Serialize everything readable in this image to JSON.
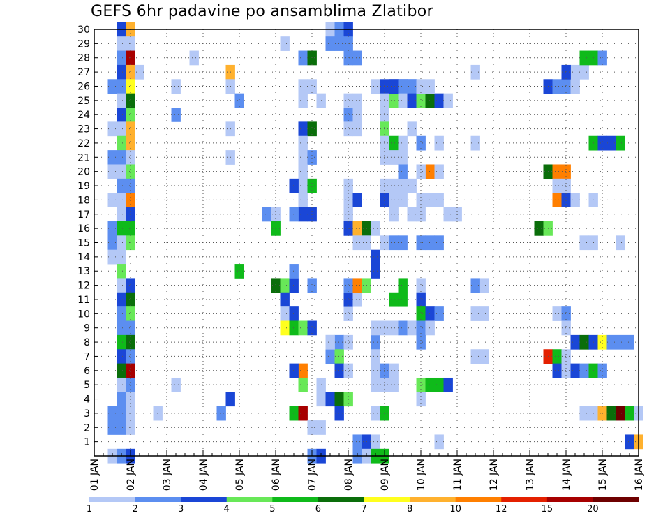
{
  "chart_data": {
    "type": "heatmap",
    "title": "GEFS 6hr padavine po ansamblima Zlatibor",
    "xlabel": "",
    "ylabel": "",
    "xlim": [
      0,
      15
    ],
    "ylim": [
      0,
      30
    ],
    "x_tick_labels": [
      "01 JAN",
      "02 JAN",
      "03 JAN",
      "04 JAN",
      "05 JAN",
      "06 JAN",
      "07 JAN",
      "08 JAN",
      "09 JAN",
      "10 JAN",
      "11 JAN",
      "12 JAN",
      "13 JAN",
      "14 JAN",
      "15 JAN",
      "16 JAN"
    ],
    "y_tick_labels": [
      "1",
      "2",
      "3",
      "4",
      "5",
      "6",
      "7",
      "8",
      "9",
      "10",
      "11",
      "12",
      "13",
      "14",
      "15",
      "16",
      "17",
      "18",
      "19",
      "20",
      "21",
      "22",
      "23",
      "24",
      "25",
      "26",
      "27",
      "28",
      "29",
      "30"
    ],
    "levels": [
      "1",
      "2",
      "3",
      "4",
      "5",
      "6",
      "7",
      "8",
      "10",
      "12",
      "15",
      "20"
    ],
    "colors": [
      "#b4c8f6",
      "#5c8ef0",
      "#1a46d6",
      "#68e858",
      "#0fba1a",
      "#0a6e0a",
      "#ffff1e",
      "#ffb12e",
      "#ff7f00",
      "#e42000",
      "#a70000",
      "#6e0000"
    ],
    "grid": true,
    "cells": [
      [
        0.75,
        30,
        2
      ],
      [
        0.75,
        29,
        0
      ],
      [
        0.75,
        28,
        1
      ],
      [
        0.75,
        27,
        2
      ],
      [
        0.75,
        26,
        1
      ],
      [
        0.75,
        25,
        0
      ],
      [
        0.75,
        24,
        2
      ],
      [
        0.75,
        23,
        0
      ],
      [
        0.75,
        22,
        3
      ],
      [
        0.75,
        21,
        1
      ],
      [
        0.75,
        20,
        0
      ],
      [
        0.75,
        19,
        1
      ],
      [
        0.75,
        18,
        0
      ],
      [
        0.75,
        17,
        0
      ],
      [
        0.75,
        16,
        4
      ],
      [
        0.75,
        15,
        0
      ],
      [
        0.75,
        14,
        0
      ],
      [
        0.75,
        13,
        3
      ],
      [
        0.75,
        12,
        0
      ],
      [
        0.75,
        11,
        2
      ],
      [
        0.75,
        10,
        1
      ],
      [
        0.75,
        9,
        1
      ],
      [
        0.75,
        8,
        4
      ],
      [
        0.75,
        7,
        2
      ],
      [
        0.75,
        6,
        5
      ],
      [
        0.75,
        5,
        0
      ],
      [
        0.75,
        4,
        1
      ],
      [
        0.75,
        3,
        1
      ],
      [
        0.75,
        2,
        1
      ],
      [
        0.75,
        0,
        1
      ],
      [
        1.0,
        30,
        7
      ],
      [
        1.0,
        29,
        0
      ],
      [
        1.0,
        28,
        10
      ],
      [
        1.0,
        27,
        7
      ],
      [
        1.0,
        26,
        6
      ],
      [
        1.0,
        25,
        5
      ],
      [
        1.0,
        24,
        3
      ],
      [
        1.0,
        23,
        7
      ],
      [
        1.0,
        22,
        7
      ],
      [
        1.0,
        21,
        0
      ],
      [
        1.0,
        20,
        3
      ],
      [
        1.0,
        19,
        1
      ],
      [
        1.0,
        18,
        8
      ],
      [
        1.0,
        17,
        2
      ],
      [
        1.0,
        16,
        4
      ],
      [
        1.0,
        15,
        3
      ],
      [
        1.0,
        12,
        2
      ],
      [
        1.0,
        11,
        5
      ],
      [
        1.0,
        10,
        3
      ],
      [
        1.0,
        9,
        1
      ],
      [
        1.0,
        8,
        5
      ],
      [
        1.0,
        7,
        1
      ],
      [
        1.0,
        6,
        10
      ],
      [
        1.0,
        5,
        1
      ],
      [
        1.0,
        4,
        0
      ],
      [
        1.0,
        3,
        0
      ],
      [
        1.0,
        2,
        0
      ],
      [
        1.0,
        0,
        2
      ],
      [
        0.5,
        26,
        1
      ],
      [
        0.5,
        23,
        0
      ],
      [
        0.5,
        21,
        1
      ],
      [
        0.5,
        20,
        0
      ],
      [
        0.5,
        18,
        0
      ],
      [
        0.5,
        16,
        1
      ],
      [
        0.5,
        15,
        1
      ],
      [
        0.5,
        14,
        0
      ],
      [
        0.5,
        3,
        1
      ],
      [
        0.5,
        2,
        1
      ],
      [
        0.5,
        0,
        0
      ],
      [
        1.25,
        27,
        0
      ],
      [
        1.75,
        3,
        0
      ],
      [
        2.25,
        5,
        0
      ],
      [
        2.25,
        24,
        1
      ],
      [
        2.25,
        26,
        0
      ],
      [
        2.75,
        28,
        0
      ],
      [
        3.5,
        3,
        1
      ],
      [
        3.75,
        4,
        2
      ],
      [
        3.75,
        27,
        7
      ],
      [
        3.75,
        26,
        0
      ],
      [
        3.75,
        23,
        0
      ],
      [
        3.75,
        21,
        0
      ],
      [
        4.0,
        25,
        1
      ],
      [
        4.0,
        13,
        4
      ],
      [
        4.75,
        17,
        1
      ],
      [
        5.0,
        17,
        0
      ],
      [
        5.0,
        16,
        4
      ],
      [
        5.0,
        12,
        5
      ],
      [
        5.25,
        12,
        3
      ],
      [
        5.25,
        11,
        2
      ],
      [
        5.25,
        10,
        0
      ],
      [
        5.25,
        9,
        6
      ],
      [
        5.5,
        12,
        2
      ],
      [
        5.5,
        10,
        2
      ],
      [
        5.5,
        9,
        4
      ],
      [
        5.25,
        29,
        0
      ],
      [
        5.75,
        28,
        1
      ],
      [
        6.0,
        28,
        5
      ],
      [
        5.75,
        26,
        0
      ],
      [
        5.75,
        25,
        0
      ],
      [
        5.75,
        23,
        2
      ],
      [
        6.0,
        23,
        5
      ],
      [
        5.75,
        22,
        0
      ],
      [
        5.75,
        21,
        0
      ],
      [
        6.0,
        21,
        1
      ],
      [
        5.75,
        20,
        0
      ],
      [
        5.75,
        19,
        0
      ],
      [
        5.5,
        19,
        2
      ],
      [
        6.0,
        19,
        4
      ],
      [
        5.75,
        18,
        0
      ],
      [
        5.75,
        17,
        2
      ],
      [
        5.5,
        17,
        1
      ],
      [
        6.0,
        17,
        2
      ],
      [
        5.5,
        13,
        1
      ],
      [
        6.0,
        12,
        1
      ],
      [
        5.75,
        9,
        3
      ],
      [
        6.0,
        9,
        2
      ],
      [
        5.75,
        6,
        8
      ],
      [
        5.5,
        6,
        2
      ],
      [
        5.75,
        5,
        3
      ],
      [
        5.5,
        3,
        4
      ],
      [
        5.75,
        3,
        10
      ],
      [
        6.0,
        2,
        0
      ],
      [
        6.25,
        2,
        0
      ],
      [
        6.0,
        0,
        1
      ],
      [
        6.25,
        0,
        2
      ],
      [
        6.25,
        5,
        0
      ],
      [
        6.25,
        4,
        0
      ],
      [
        6.5,
        4,
        2
      ],
      [
        6.75,
        4,
        5
      ],
      [
        7.0,
        4,
        3
      ],
      [
        6.75,
        3,
        2
      ],
      [
        6.5,
        8,
        0
      ],
      [
        6.75,
        8,
        1
      ],
      [
        6.5,
        7,
        1
      ],
      [
        6.75,
        7,
        3
      ],
      [
        6.5,
        8,
        0
      ],
      [
        7.0,
        8,
        0
      ],
      [
        6.75,
        6,
        2
      ],
      [
        7.0,
        6,
        0
      ],
      [
        7.0,
        10,
        0
      ],
      [
        7.0,
        11,
        2
      ],
      [
        7.25,
        11,
        0
      ],
      [
        7.0,
        12,
        1
      ],
      [
        7.25,
        12,
        8
      ],
      [
        7.5,
        12,
        3
      ],
      [
        6.25,
        25,
        0
      ],
      [
        6.5,
        30,
        0
      ],
      [
        6.75,
        30,
        1
      ],
      [
        7.0,
        30,
        2
      ],
      [
        6.5,
        29,
        1
      ],
      [
        6.75,
        29,
        1
      ],
      [
        7.0,
        29,
        1
      ],
      [
        6.0,
        26,
        0
      ],
      [
        7.0,
        28,
        1
      ],
      [
        7.25,
        28,
        1
      ],
      [
        7.0,
        25,
        0
      ],
      [
        7.25,
        25,
        0
      ],
      [
        7.0,
        24,
        1
      ],
      [
        7.25,
        24,
        0
      ],
      [
        7.0,
        23,
        0
      ],
      [
        7.25,
        23,
        0
      ],
      [
        7.0,
        19,
        0
      ],
      [
        7.0,
        18,
        0
      ],
      [
        7.25,
        18,
        2
      ],
      [
        7.0,
        17,
        0
      ],
      [
        7.0,
        16,
        2
      ],
      [
        7.25,
        16,
        7
      ],
      [
        7.5,
        16,
        5
      ],
      [
        7.25,
        15,
        0
      ],
      [
        7.5,
        15,
        0
      ],
      [
        7.25,
        1,
        1
      ],
      [
        7.5,
        1,
        2
      ],
      [
        7.75,
        1,
        0
      ],
      [
        7.25,
        0,
        1
      ],
      [
        7.5,
        0,
        0
      ],
      [
        7.75,
        16,
        0
      ],
      [
        7.75,
        14,
        2
      ],
      [
        7.75,
        13,
        2
      ],
      [
        7.75,
        5,
        0
      ],
      [
        7.75,
        8,
        1
      ],
      [
        7.75,
        7,
        0
      ],
      [
        7.75,
        3,
        0
      ],
      [
        8.0,
        3,
        4
      ],
      [
        7.75,
        26,
        0
      ],
      [
        8.0,
        26,
        2
      ],
      [
        8.25,
        26,
        2
      ],
      [
        8.5,
        26,
        2
      ],
      [
        8.75,
        26,
        1
      ],
      [
        8.0,
        25,
        0
      ],
      [
        8.25,
        25,
        3
      ],
      [
        8.0,
        24,
        0
      ],
      [
        8.0,
        23,
        3
      ],
      [
        8.0,
        22,
        0
      ],
      [
        8.25,
        22,
        4
      ],
      [
        8.0,
        21,
        0
      ],
      [
        8.25,
        21,
        0
      ],
      [
        8.0,
        19,
        0
      ],
      [
        8.25,
        19,
        0
      ],
      [
        8.5,
        19,
        0
      ],
      [
        8.75,
        19,
        0
      ],
      [
        8.0,
        18,
        2
      ],
      [
        8.25,
        18,
        0
      ],
      [
        8.5,
        18,
        0
      ],
      [
        8.25,
        17,
        0
      ],
      [
        8.75,
        17,
        0
      ],
      [
        8.0,
        15,
        0
      ],
      [
        8.25,
        15,
        1
      ],
      [
        8.5,
        15,
        1
      ],
      [
        7.75,
        9,
        0
      ],
      [
        8.0,
        9,
        0
      ],
      [
        8.25,
        9,
        0
      ],
      [
        8.5,
        9,
        1
      ],
      [
        8.75,
        9,
        0
      ],
      [
        7.75,
        6,
        0
      ],
      [
        8.0,
        6,
        1
      ],
      [
        8.25,
        6,
        0
      ],
      [
        8.0,
        5,
        0
      ],
      [
        8.25,
        5,
        0
      ],
      [
        7.75,
        0,
        4
      ],
      [
        8.0,
        0,
        4
      ],
      [
        8.25,
        26,
        2
      ],
      [
        8.5,
        26,
        1
      ],
      [
        8.75,
        26,
        1
      ],
      [
        8.5,
        25,
        0
      ],
      [
        8.75,
        25,
        2
      ],
      [
        8.75,
        23,
        0
      ],
      [
        8.5,
        22,
        0
      ],
      [
        8.5,
        21,
        0
      ],
      [
        8.5,
        20,
        1
      ],
      [
        8.5,
        11,
        4
      ],
      [
        8.5,
        12,
        4
      ],
      [
        8.25,
        11,
        4
      ],
      [
        9.0,
        25,
        3
      ],
      [
        9.25,
        25,
        5
      ],
      [
        9.5,
        25,
        2
      ],
      [
        9.75,
        25,
        0
      ],
      [
        9.0,
        26,
        0
      ],
      [
        9.25,
        26,
        0
      ],
      [
        9.0,
        22,
        1
      ],
      [
        9.5,
        22,
        0
      ],
      [
        9.0,
        18,
        0
      ],
      [
        9.25,
        18,
        0
      ],
      [
        9.5,
        18,
        0
      ],
      [
        9.0,
        17,
        0
      ],
      [
        9.5,
        15,
        1
      ],
      [
        9.25,
        15,
        1
      ],
      [
        9.0,
        15,
        1
      ],
      [
        9.0,
        12,
        0
      ],
      [
        9.0,
        11,
        2
      ],
      [
        9.0,
        10,
        4
      ],
      [
        9.25,
        10,
        2
      ],
      [
        9.5,
        10,
        1
      ],
      [
        9.0,
        9,
        1
      ],
      [
        9.25,
        9,
        0
      ],
      [
        9.0,
        8,
        1
      ],
      [
        9.0,
        5,
        3
      ],
      [
        9.25,
        5,
        4
      ],
      [
        9.5,
        5,
        4
      ],
      [
        9.75,
        5,
        2
      ],
      [
        9.0,
        4,
        0
      ],
      [
        9.5,
        1,
        0
      ],
      [
        9.25,
        20,
        8
      ],
      [
        9.5,
        20,
        0
      ],
      [
        9.0,
        20,
        0
      ],
      [
        9.75,
        17,
        0
      ],
      [
        10.0,
        17,
        0
      ],
      [
        10.75,
        12,
        0
      ],
      [
        10.5,
        12,
        1
      ],
      [
        10.5,
        10,
        0
      ],
      [
        10.75,
        10,
        0
      ],
      [
        10.5,
        7,
        0
      ],
      [
        10.75,
        7,
        0
      ],
      [
        10.5,
        22,
        0
      ],
      [
        10.5,
        27,
        0
      ],
      [
        12.5,
        26,
        2
      ],
      [
        12.75,
        26,
        1
      ],
      [
        13.0,
        26,
        1
      ],
      [
        13.25,
        26,
        0
      ],
      [
        13.25,
        27,
        0
      ],
      [
        13.5,
        27,
        0
      ],
      [
        13.0,
        27,
        2
      ],
      [
        13.5,
        28,
        4
      ],
      [
        13.75,
        28,
        4
      ],
      [
        14.0,
        28,
        1
      ],
      [
        13.75,
        22,
        4
      ],
      [
        14.0,
        22,
        2
      ],
      [
        14.25,
        22,
        2
      ],
      [
        14.5,
        22,
        4
      ],
      [
        12.5,
        20,
        5
      ],
      [
        12.75,
        20,
        8
      ],
      [
        13.0,
        20,
        8
      ],
      [
        12.75,
        19,
        0
      ],
      [
        13.0,
        19,
        0
      ],
      [
        12.75,
        18,
        8
      ],
      [
        13.0,
        18,
        2
      ],
      [
        13.25,
        18,
        0
      ],
      [
        13.75,
        18,
        0
      ],
      [
        12.25,
        16,
        5
      ],
      [
        12.5,
        16,
        3
      ],
      [
        13.5,
        15,
        0
      ],
      [
        13.75,
        15,
        0
      ],
      [
        14.5,
        15,
        0
      ],
      [
        12.75,
        10,
        0
      ],
      [
        13.0,
        10,
        1
      ],
      [
        13.0,
        9,
        0
      ],
      [
        12.5,
        7,
        9
      ],
      [
        12.75,
        7,
        4
      ],
      [
        13.0,
        7,
        0
      ],
      [
        12.75,
        6,
        2
      ],
      [
        13.0,
        6,
        0
      ],
      [
        13.25,
        6,
        2
      ],
      [
        13.5,
        6,
        1
      ],
      [
        13.75,
        6,
        4
      ],
      [
        14.0,
        6,
        1
      ],
      [
        13.25,
        8,
        2
      ],
      [
        13.5,
        8,
        5
      ],
      [
        13.75,
        8,
        2
      ],
      [
        14.0,
        8,
        6
      ],
      [
        14.25,
        8,
        1
      ],
      [
        14.5,
        8,
        1
      ],
      [
        14.75,
        8,
        1
      ],
      [
        13.5,
        3,
        0
      ],
      [
        13.75,
        3,
        0
      ],
      [
        14.0,
        3,
        7
      ],
      [
        14.25,
        3,
        5
      ],
      [
        14.5,
        3,
        11
      ],
      [
        14.75,
        3,
        4
      ],
      [
        15.0,
        3,
        0
      ],
      [
        14.75,
        1,
        2
      ],
      [
        15.0,
        1,
        7
      ]
    ]
  }
}
